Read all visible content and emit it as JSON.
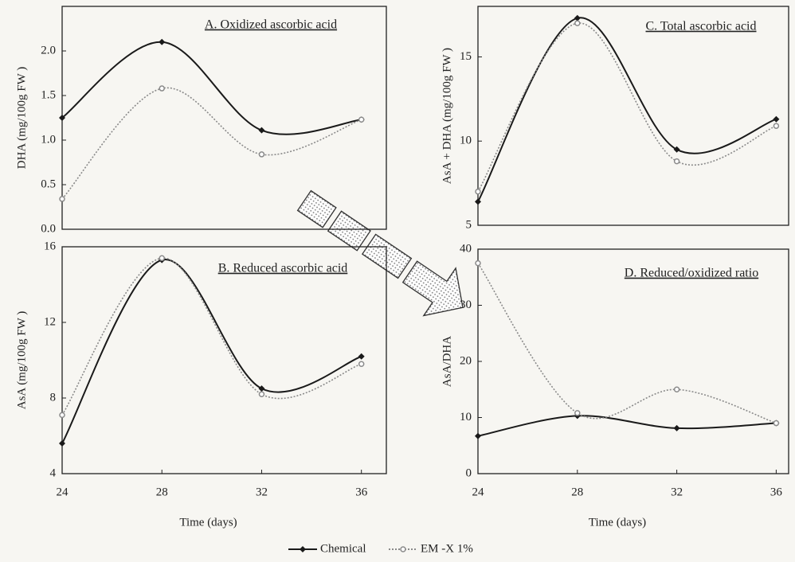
{
  "chart_data": [
    {
      "type": "line",
      "title": "A. Oxidized ascorbic acid",
      "y_label": "DHA (mg/100g FW )",
      "x": [
        24,
        28,
        32,
        36
      ],
      "xlim": [
        24,
        37
      ],
      "ylim": [
        0,
        2.5
      ],
      "yticks": [
        {
          "value": 0,
          "label": "0.0"
        },
        0.5,
        {
          "value": 1,
          "label": "1.0"
        },
        1.5,
        {
          "value": 2,
          "label": "2.0"
        }
      ],
      "series": [
        {
          "name": "Chemical",
          "color": "#1a1a1a",
          "line_style": "solid",
          "marker": "diamond",
          "values": [
            1.25,
            2.1,
            1.11,
            1.23
          ]
        },
        {
          "name": "EM -X 1%",
          "color": "#8a8a8a",
          "line_style": "dotted",
          "marker": "circle",
          "values": [
            0.34,
            1.58,
            0.84,
            1.23
          ]
        }
      ]
    },
    {
      "type": "line",
      "title": "B. Reduced ascorbic acid",
      "y_label": "AsA (mg/100g FW )",
      "x_label": "Time (days)",
      "x": [
        24,
        28,
        32,
        36
      ],
      "xlim": [
        24,
        37
      ],
      "xticks": [
        24,
        28,
        32,
        36
      ],
      "ylim": [
        4,
        16
      ],
      "yticks": [
        4,
        8,
        12,
        16
      ],
      "series": [
        {
          "name": "Chemical",
          "color": "#1a1a1a",
          "line_style": "solid",
          "marker": "diamond",
          "values": [
            5.6,
            15.3,
            8.5,
            10.2
          ]
        },
        {
          "name": "EM -X 1%",
          "color": "#8a8a8a",
          "line_style": "dotted",
          "marker": "circle",
          "values": [
            7.1,
            15.4,
            8.2,
            9.8
          ]
        }
      ]
    },
    {
      "type": "line",
      "title": "C. Total ascorbic acid",
      "y_label": "AsA + DHA (mg/100g FW )",
      "x": [
        24,
        28,
        32,
        36
      ],
      "xlim": [
        24,
        36.5
      ],
      "ylim": [
        5,
        18
      ],
      "yticks": [
        5,
        10,
        15
      ],
      "series": [
        {
          "name": "Chemical",
          "color": "#1a1a1a",
          "line_style": "solid",
          "marker": "diamond",
          "values": [
            6.4,
            17.3,
            9.5,
            11.3
          ]
        },
        {
          "name": "EM -X 1%",
          "color": "#8a8a8a",
          "line_style": "dotted",
          "marker": "circle",
          "values": [
            7.0,
            17.0,
            8.8,
            10.9
          ]
        }
      ]
    },
    {
      "type": "line",
      "title": "D. Reduced/oxidized ratio",
      "y_label": "AsA/DHA",
      "x_label": "Time (days)",
      "x": [
        24,
        28,
        32,
        36
      ],
      "xlim": [
        24,
        36.5
      ],
      "xticks": [
        24,
        28,
        32,
        36
      ],
      "ylim": [
        0,
        40
      ],
      "yticks": [
        0,
        10,
        20,
        30,
        40
      ],
      "series": [
        {
          "name": "Chemical",
          "color": "#1a1a1a",
          "line_style": "solid",
          "marker": "diamond",
          "values": [
            6.7,
            10.3,
            8.1,
            9.0
          ]
        },
        {
          "name": "EM -X 1%",
          "color": "#8a8a8a",
          "line_style": "dotted",
          "marker": "circle",
          "values": [
            37.5,
            10.8,
            15.0,
            9.0
          ]
        }
      ]
    }
  ]
}
